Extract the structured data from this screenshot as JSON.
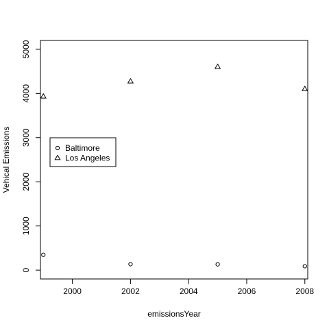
{
  "chart_data": {
    "type": "scatter",
    "title": "",
    "xlabel": "emissionsYear",
    "ylabel": "Vehical Emissions",
    "xlim": [
      1998.9,
      2008.1
    ],
    "ylim": [
      -200,
      5200
    ],
    "x_ticks": [
      2000,
      2002,
      2004,
      2006,
      2008
    ],
    "y_ticks": [
      0,
      1000,
      2000,
      3000,
      4000,
      5000
    ],
    "grid": false,
    "legend_position": "left",
    "series": [
      {
        "name": "Baltimore",
        "marker": "circle",
        "color": "#000000",
        "x": [
          1999,
          2002,
          2005,
          2008
        ],
        "y": [
          347,
          134,
          130,
          88
        ]
      },
      {
        "name": "Los Angeles",
        "marker": "triangle",
        "color": "#000000",
        "x": [
          1999,
          2002,
          2005,
          2008
        ],
        "y": [
          3931,
          4274,
          4601,
          4101
        ]
      }
    ]
  }
}
